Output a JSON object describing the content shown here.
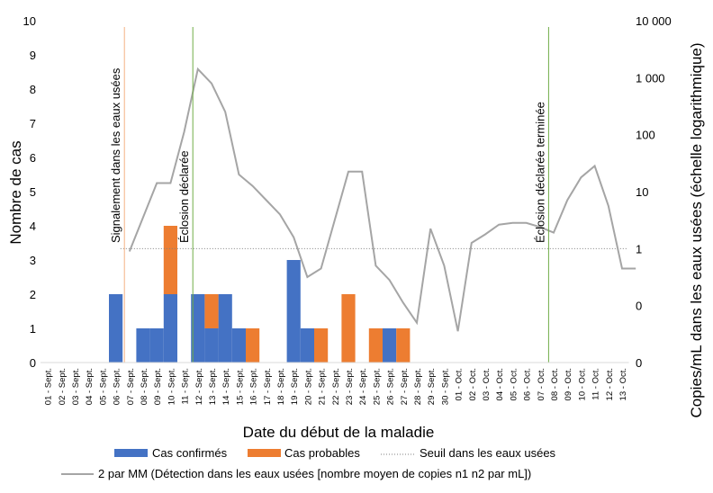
{
  "chart_data": {
    "type": "bar",
    "stacked": true,
    "xlabel": "Date du début de la maladie",
    "ylabel": "Nombre de cas",
    "y2label": "Copies/mL dans les eaux usées (échelle logarithmique)",
    "ylim": [
      0,
      10
    ],
    "y2_ticks": [
      "0",
      "0",
      "1",
      "10",
      "100",
      "1 000",
      "10 000"
    ],
    "y2_exponent_range": [
      -2,
      4
    ],
    "colors": {
      "confirmed": "#4472C4",
      "probable": "#ED7D31",
      "wastewater": "#A5A5A5",
      "threshold": "#808080",
      "report_line": "#F4B183",
      "outbreak_line": "#70AD47"
    },
    "categories": [
      "01 - Sept.",
      "02 - Sept.",
      "03 - Sept.",
      "04 - Sept.",
      "05 - Sept.",
      "06 - Sept.",
      "07 - Sept.",
      "08 - Sept.",
      "09 - Sept.",
      "10 - Sept.",
      "11 - Sept.",
      "12 - Sept.",
      "13 - Sept.",
      "14 - Sept.",
      "15 - Sept.",
      "16 - Sept.",
      "17 - Sept.",
      "18 - Sept.",
      "19 - Sept.",
      "20 - Sept.",
      "21 - Sept.",
      "22 - Sept.",
      "23 - Sept.",
      "24 - Sept.",
      "25 - Sept.",
      "26 - Sept.",
      "27 - Sept.",
      "28 - Sept.",
      "29 - Sept.",
      "30 - Sept.",
      "01 - Oct.",
      "02 - Oct.",
      "03 - Oct.",
      "04 - Oct.",
      "05 - Oct.",
      "06 - Oct.",
      "07 - Oct.",
      "08 - Oct.",
      "09 - Oct.",
      "10 - Oct.",
      "11 - Oct.",
      "12 - Oct.",
      "13 - Oct."
    ],
    "series": [
      {
        "name": "Cas confirmés",
        "values": [
          0,
          0,
          0,
          0,
          0,
          2,
          0,
          1,
          1,
          2,
          0,
          2,
          1,
          2,
          1,
          0,
          0,
          0,
          3,
          1,
          0,
          0,
          0,
          0,
          0,
          1,
          0,
          0,
          0,
          0,
          0,
          0,
          0,
          0,
          0,
          0,
          0,
          0,
          0,
          0,
          0,
          0,
          0
        ]
      },
      {
        "name": "Cas probables",
        "values": [
          0,
          0,
          0,
          0,
          0,
          0,
          0,
          0,
          0,
          2,
          0,
          0,
          1,
          0,
          0,
          1,
          0,
          0,
          0,
          0,
          1,
          0,
          2,
          0,
          1,
          0,
          1,
          0,
          0,
          0,
          0,
          0,
          0,
          0,
          0,
          0,
          0,
          0,
          0,
          0,
          0,
          0,
          0
        ]
      }
    ],
    "wastewater": {
      "name": "2 par MM (Détection dans les eaux usées [nombre moyen de copies n1 n2 par mL])",
      "x_start": 6,
      "log10_values": [
        -0.05,
        0.55,
        1.15,
        1.15,
        2.05,
        3.15,
        2.9,
        2.4,
        1.3,
        1.1,
        0.85,
        0.6,
        0.2,
        -0.5,
        -0.35,
        0.5,
        1.35,
        1.35,
        -0.3,
        -0.55,
        -0.95,
        -1.3,
        0.35,
        -0.3,
        -1.45,
        0.1,
        0.25,
        0.42,
        0.45,
        0.45,
        0.38,
        0.28,
        0.85,
        1.25,
        1.45,
        0.75,
        -0.35,
        -0.35
      ]
    },
    "threshold": {
      "name": "Seuil dans les eaux usées",
      "log10_value": 0
    },
    "annotations": [
      {
        "text": "Signalement dans les eaux usées",
        "x_index": 6,
        "color_key": "report_line"
      },
      {
        "text": "Éclosion déclarée",
        "x_index": 11,
        "color_key": "outbreak_line"
      },
      {
        "text": "Éclosion déclarée terminée",
        "x_index": 37,
        "color_key": "outbreak_line"
      }
    ],
    "legend": {
      "position": "bottom",
      "entries": [
        "Cas confirmés",
        "Cas probables",
        "Seuil dans les eaux usées",
        "2 par MM (Détection dans les eaux usées [nombre moyen de copies n1 n2 par mL])"
      ]
    }
  }
}
